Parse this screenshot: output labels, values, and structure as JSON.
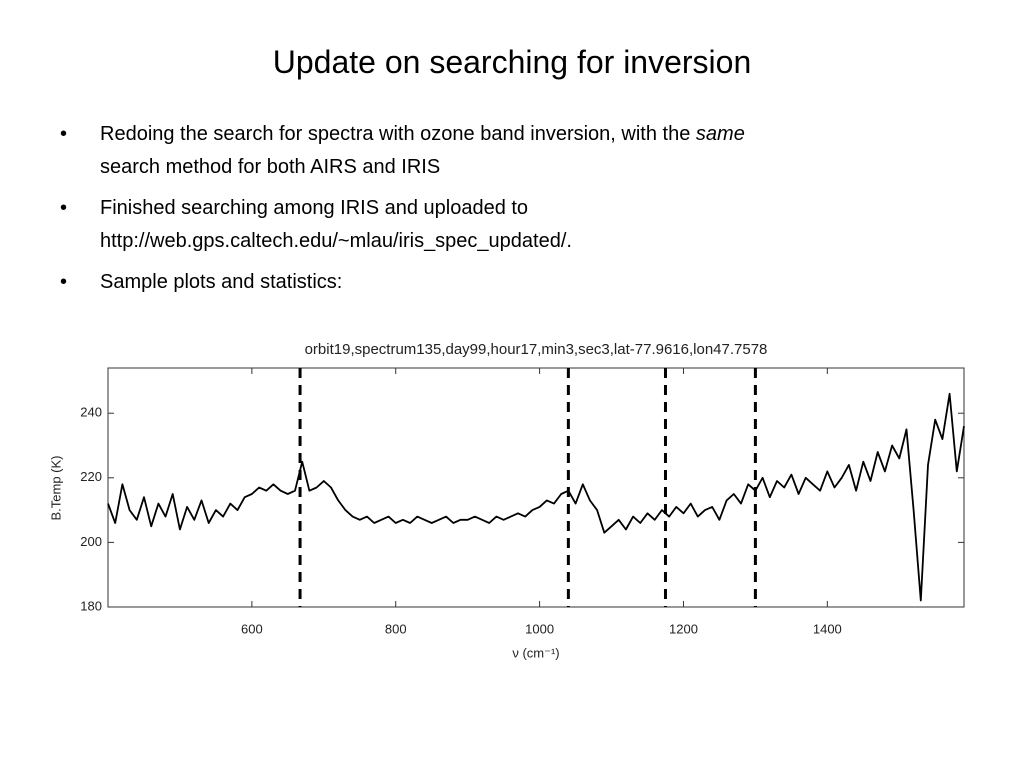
{
  "slide": {
    "title": "Update on searching for inversion",
    "bullets": [
      {
        "parts": [
          "Redoing the search for spectra with ozone band inversion, with the",
          "same",
          "search method for both AIRS and IRIS"
        ]
      },
      {
        "parts": [
          "Finished searching among IRIS and uploaded to",
          "http://web.gps.caltech.edu/~mlau/iris_spec_updated/."
        ]
      },
      {
        "parts": [
          "Sample plots and statistics:"
        ]
      }
    ]
  },
  "chart_data": {
    "type": "line",
    "title": "orbit19,spectrum135,day99,hour17,min3,sec3,lat-77.9616,lon47.7578",
    "x_label": "ν (cm⁻¹)",
    "y_label": "B.Temp (K)",
    "x": [
      400,
      410,
      420,
      430,
      440,
      450,
      460,
      470,
      480,
      490,
      500,
      510,
      520,
      530,
      540,
      550,
      560,
      570,
      580,
      590,
      600,
      610,
      620,
      630,
      640,
      650,
      660,
      670,
      680,
      690,
      700,
      710,
      720,
      730,
      740,
      750,
      760,
      770,
      780,
      790,
      800,
      810,
      820,
      830,
      840,
      850,
      860,
      870,
      880,
      890,
      900,
      910,
      920,
      930,
      940,
      950,
      960,
      970,
      980,
      990,
      1000,
      1010,
      1020,
      1030,
      1040,
      1050,
      1060,
      1070,
      1080,
      1090,
      1100,
      1110,
      1120,
      1130,
      1140,
      1150,
      1160,
      1170,
      1180,
      1190,
      1200,
      1210,
      1220,
      1230,
      1240,
      1250,
      1260,
      1270,
      1280,
      1290,
      1300,
      1310,
      1320,
      1330,
      1340,
      1350,
      1360,
      1370,
      1380,
      1390,
      1400,
      1410,
      1420,
      1430,
      1440,
      1450,
      1460,
      1470,
      1480,
      1490,
      1500,
      1510,
      1520,
      1530,
      1540,
      1550,
      1560,
      1570,
      1580,
      1590
    ],
    "values": [
      212,
      206,
      218,
      210,
      207,
      214,
      205,
      212,
      208,
      215,
      204,
      211,
      207,
      213,
      206,
      210,
      208,
      212,
      210,
      214,
      215,
      217,
      216,
      218,
      216,
      215,
      216,
      225,
      216,
      217,
      219,
      217,
      213,
      210,
      208,
      207,
      208,
      206,
      207,
      208,
      206,
      207,
      206,
      208,
      207,
      206,
      207,
      208,
      206,
      207,
      207,
      208,
      207,
      206,
      208,
      207,
      208,
      209,
      208,
      210,
      211,
      213,
      212,
      215,
      216,
      212,
      218,
      213,
      210,
      203,
      205,
      207,
      204,
      208,
      206,
      209,
      207,
      210,
      208,
      211,
      209,
      212,
      208,
      210,
      211,
      207,
      213,
      215,
      212,
      218,
      216,
      220,
      214,
      219,
      217,
      221,
      215,
      220,
      218,
      216,
      222,
      217,
      220,
      224,
      216,
      225,
      219,
      228,
      222,
      230,
      226,
      235,
      210,
      182,
      224,
      238,
      232,
      246,
      222,
      236
    ],
    "color": "#000000",
    "vlines": [
      667,
      1040,
      1175,
      1300
    ],
    "xlim": [
      400,
      1590
    ],
    "ylim": [
      180,
      254
    ],
    "xticks": [
      600,
      800,
      1000,
      1200,
      1400
    ],
    "yticks": [
      180,
      200,
      220,
      240
    ]
  }
}
